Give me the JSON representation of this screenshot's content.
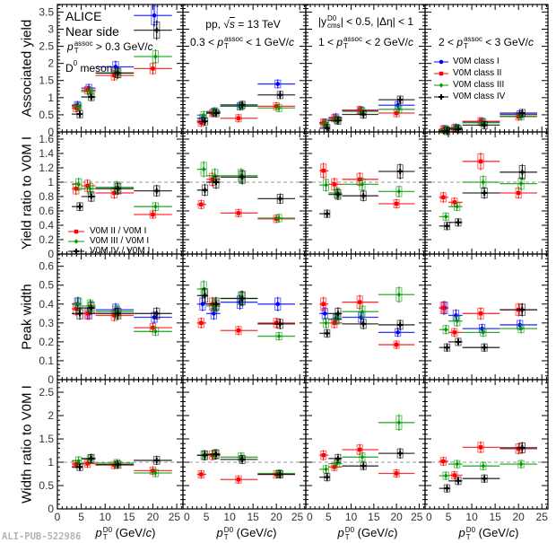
{
  "watermark": "ALI-PUB-522986",
  "annotations": {
    "alice": "ALICE",
    "near_side": "Near side",
    "pt_sym": "p",
    "pt_sub": "T",
    "assoc_sup": "assoc",
    "assoc_cut1": " > 0.3 GeV/",
    "c": "c",
    "d_meson_D": "D",
    "d_meson_sup": "0",
    "d_meson_rest": " meson",
    "pp": "pp, ",
    "sqrt": "√",
    "s": "s",
    "energy": " = 13 TeV",
    "bin2_pre": "0.3 < ",
    "bin2_post": " < 1 GeV/",
    "rap_pre": "|y",
    "rap_sup": "D0",
    "rap_sub": "cms",
    "rap_post": "| < 0.5, |Δη| < 1",
    "bin3_pre": "1 < ",
    "bin3_post": " < 2 GeV/",
    "bin4_pre": "2 < ",
    "bin4_post": " < 3 GeV/",
    "xlabel_sup": "D0",
    "xlabel_unit_pre": " (GeV/",
    "xlabel_unit_post": ")"
  },
  "legend_classes": [
    "V0M class I",
    "V0M class II",
    "V0M class III",
    "V0M class IV"
  ],
  "legend_ratios": [
    "V0M II / V0M I",
    "V0M III / V0M I",
    "V0M IV / V0M I"
  ],
  "colors": {
    "I": "#0000ff",
    "II": "#ff0000",
    "III": "#009900",
    "IV": "#000000"
  },
  "markers": {
    "I": "circle",
    "II": "square",
    "III": "diamond",
    "IV": "cross"
  },
  "chart_data": {
    "type": "scatter",
    "xlabel": "p_T^D0 (GeV/c)",
    "xlim": [
      0,
      26.3
    ],
    "xticks": [
      0,
      5,
      10,
      15,
      20,
      25
    ],
    "x_bins": [
      [
        3,
        5
      ],
      [
        5,
        8
      ],
      [
        8,
        16
      ],
      [
        16,
        24
      ]
    ],
    "x_centers": [
      4.2,
      6.6,
      12.2,
      20.3
    ],
    "columns": [
      "p_T^assoc > 0.3 GeV/c",
      "0.3 < p_T^assoc < 1 GeV/c",
      "1 < p_T^assoc < 2 GeV/c",
      "2 < p_T^assoc < 3 GeV/c"
    ],
    "rows": [
      {
        "ylabel": "Associated yield",
        "ylim": [
          0,
          3.72
        ],
        "yticks": [
          0,
          0.5,
          1,
          1.5,
          2,
          2.5,
          3,
          3.5
        ],
        "reference_line": null,
        "panels": [
          {
            "series": [
              {
                "name": "V0M class I",
                "key": "I",
                "values": [
                  0.78,
                  1.28,
                  1.9,
                  3.4
                ]
              },
              {
                "name": "V0M class II",
                "key": "II",
                "values": [
                  0.7,
                  1.22,
                  1.65,
                  1.85
                ]
              },
              {
                "name": "V0M class III",
                "key": "III",
                "values": [
                  0.75,
                  1.18,
                  1.72,
                  2.2
                ]
              },
              {
                "name": "V0M class IV",
                "key": "IV",
                "values": [
                  0.52,
                  1.02,
                  1.72,
                  2.97
                ]
              }
            ]
          },
          {
            "series": [
              {
                "name": "V0M class I",
                "key": "I",
                "values": [
                  0.4,
                  0.58,
                  0.75,
                  1.4
                ]
              },
              {
                "name": "V0M class II",
                "key": "II",
                "values": [
                  0.27,
                  0.55,
                  0.4,
                  0.75
                ]
              },
              {
                "name": "V0M class III",
                "key": "III",
                "values": [
                  0.49,
                  0.6,
                  0.75,
                  0.7
                ]
              },
              {
                "name": "V0M class IV",
                "key": "IV",
                "values": [
                  0.31,
                  0.55,
                  0.79,
                  1.08
                ]
              }
            ]
          },
          {
            "series": [
              {
                "name": "V0M class I",
                "key": "I",
                "values": [
                  0.27,
                  0.42,
                  0.62,
                  0.78
                ]
              },
              {
                "name": "V0M class II",
                "key": "II",
                "values": [
                  0.27,
                  0.4,
                  0.64,
                  0.55
                ]
              },
              {
                "name": "V0M class III",
                "key": "III",
                "values": [
                  0.23,
                  0.36,
                  0.6,
                  0.66
                ]
              },
              {
                "name": "V0M class IV",
                "key": "IV",
                "values": [
                  0.11,
                  0.33,
                  0.51,
                  0.94
                ]
              }
            ]
          },
          {
            "series": [
              {
                "name": "V0M class I",
                "key": "I",
                "values": [
                  0.08,
                  0.12,
                  0.29,
                  0.51
                ]
              },
              {
                "name": "V0M class II",
                "key": "II",
                "values": [
                  0.07,
                  0.1,
                  0.31,
                  0.45
                ]
              },
              {
                "name": "V0M class III",
                "key": "III",
                "values": [
                  0.07,
                  0.11,
                  0.27,
                  0.46
                ]
              },
              {
                "name": "V0M class IV",
                "key": "IV",
                "values": [
                  0.03,
                  0.08,
                  0.2,
                  0.55
                ]
              }
            ]
          }
        ]
      },
      {
        "ylabel": "Yield ratio to V0M I",
        "ylim": [
          0,
          1.7
        ],
        "yticks": [
          0,
          0.2,
          0.4,
          0.6,
          0.8,
          1,
          1.2,
          1.4,
          1.6
        ],
        "reference_line": 1,
        "panels": [
          {
            "series": [
              {
                "name": "V0M II / V0M I",
                "key": "II",
                "values": [
                  0.91,
                  0.95,
                  0.85,
                  0.55
                ]
              },
              {
                "name": "V0M III / V0M I",
                "key": "III",
                "values": [
                  0.97,
                  0.91,
                  0.93,
                  0.66
                ]
              },
              {
                "name": "V0M IV / V0M I",
                "key": "IV",
                "values": [
                  0.66,
                  0.8,
                  0.91,
                  0.88
                ]
              }
            ]
          },
          {
            "series": [
              {
                "name": "V0M II / V0M I",
                "key": "II",
                "values": [
                  0.69,
                  1.04,
                  0.57,
                  0.49
                ]
              },
              {
                "name": "V0M III / V0M I",
                "key": "III",
                "values": [
                  1.18,
                  1.09,
                  1.09,
                  0.5
                ]
              },
              {
                "name": "V0M IV / V0M I",
                "key": "IV",
                "values": [
                  0.89,
                  1.0,
                  1.07,
                  0.77
                ]
              }
            ]
          },
          {
            "series": [
              {
                "name": "V0M II / V0M I",
                "key": "II",
                "values": [
                  1.16,
                  0.97,
                  1.04,
                  0.7
                ]
              },
              {
                "name": "V0M III / V0M I",
                "key": "III",
                "values": [
                  0.96,
                  0.85,
                  0.97,
                  0.87
                ]
              },
              {
                "name": "V0M IV / V0M I",
                "key": "IV",
                "values": [
                  0.56,
                  0.83,
                  0.81,
                  1.15
                ]
              }
            ]
          },
          {
            "series": [
              {
                "name": "V0M II / V0M I",
                "key": "II",
                "values": [
                  0.79,
                  0.72,
                  1.29,
                  0.85
                ]
              },
              {
                "name": "V0M III / V0M I",
                "key": "III",
                "values": [
                  0.52,
                  0.66,
                  1.0,
                  0.98
                ]
              },
              {
                "name": "V0M IV / V0M I",
                "key": "IV",
                "values": [
                  0.39,
                  0.44,
                  0.85,
                  1.14
                ]
              }
            ]
          }
        ]
      },
      {
        "ylabel": "Peak width",
        "ylim": [
          0,
          0.665
        ],
        "yticks": [
          0,
          0.1,
          0.2,
          0.3,
          0.4,
          0.5,
          0.6
        ],
        "reference_line": null,
        "panels": [
          {
            "series": [
              {
                "name": "V0M class I",
                "key": "I",
                "values": [
                  0.4,
                  0.35,
                  0.37,
                  0.33
                ]
              },
              {
                "name": "V0M class II",
                "key": "II",
                "values": [
                  0.375,
                  0.35,
                  0.34,
                  0.275
                ]
              },
              {
                "name": "V0M class III",
                "key": "III",
                "values": [
                  0.4,
                  0.39,
                  0.36,
                  0.255
                ]
              },
              {
                "name": "V0M class IV",
                "key": "IV",
                "values": [
                  0.35,
                  0.38,
                  0.35,
                  0.35
                ]
              }
            ]
          },
          {
            "series": [
              {
                "name": "V0M class I",
                "key": "I",
                "values": [
                  0.4,
                  0.35,
                  0.41,
                  0.4
                ]
              },
              {
                "name": "V0M class II",
                "key": "II",
                "values": [
                  0.3,
                  0.4,
                  0.26,
                  0.3
                ]
              },
              {
                "name": "V0M class III",
                "key": "III",
                "values": [
                  0.48,
                  0.39,
                  0.43,
                  0.23
                ]
              },
              {
                "name": "V0M class IV",
                "key": "IV",
                "values": [
                  0.445,
                  0.4,
                  0.43,
                  0.295
                ]
              }
            ]
          },
          {
            "series": [
              {
                "name": "V0M class I",
                "key": "I",
                "values": [
                  0.35,
                  0.32,
                  0.33,
                  0.25
                ]
              },
              {
                "name": "V0M class II",
                "key": "II",
                "values": [
                  0.4,
                  0.3,
                  0.41,
                  0.185
                ]
              },
              {
                "name": "V0M class III",
                "key": "III",
                "values": [
                  0.3,
                  0.32,
                  0.36,
                  0.45
                ]
              },
              {
                "name": "V0M class IV",
                "key": "IV",
                "values": [
                  0.245,
                  0.35,
                  0.295,
                  0.29
                ]
              }
            ]
          },
          {
            "series": [
              {
                "name": "V0M class I",
                "key": "I",
                "values": [
                  0.38,
                  0.34,
                  0.27,
                  0.29
                ]
              },
              {
                "name": "V0M class II",
                "key": "II",
                "values": [
                  0.38,
                  0.25,
                  0.35,
                  0.37
                ]
              },
              {
                "name": "V0M class III",
                "key": "III",
                "values": [
                  0.265,
                  0.31,
                  0.25,
                  0.27
                ]
              },
              {
                "name": "V0M class IV",
                "key": "IV",
                "values": [
                  0.17,
                  0.2,
                  0.17,
                  0.37
                ]
              }
            ]
          }
        ]
      },
      {
        "ylabel": "Width ratio to V0M I",
        "ylim": [
          0,
          2.77
        ],
        "yticks": [
          0,
          0.5,
          1,
          1.5,
          2,
          2.5
        ],
        "reference_line": 1,
        "panels": [
          {
            "series": [
              {
                "name": "V0M II / V0M I",
                "key": "II",
                "values": [
                  0.96,
                  0.97,
                  0.94,
                  0.82
                ]
              },
              {
                "name": "V0M III / V0M I",
                "key": "III",
                "values": [
                  1.03,
                  1.07,
                  0.98,
                  0.77
                ]
              },
              {
                "name": "V0M IV / V0M I",
                "key": "IV",
                "values": [
                  0.9,
                  1.08,
                  0.95,
                  1.04
                ]
              }
            ]
          },
          {
            "series": [
              {
                "name": "V0M II / V0M I",
                "key": "II",
                "values": [
                  0.74,
                  1.15,
                  0.63,
                  0.74
                ]
              },
              {
                "name": "V0M III / V0M I",
                "key": "III",
                "values": [
                  1.15,
                  1.17,
                  1.11,
                  0.76
                ]
              },
              {
                "name": "V0M IV / V0M I",
                "key": "IV",
                "values": [
                  1.15,
                  1.17,
                  1.06,
                  0.74
                ]
              }
            ]
          },
          {
            "series": [
              {
                "name": "V0M II / V0M I",
                "key": "II",
                "values": [
                  1.15,
                  0.9,
                  1.27,
                  0.76
                ]
              },
              {
                "name": "V0M III / V0M I",
                "key": "III",
                "values": [
                  0.85,
                  0.97,
                  1.11,
                  1.85
                ]
              },
              {
                "name": "V0M IV / V0M I",
                "key": "IV",
                "values": [
                  0.68,
                  1.08,
                  0.92,
                  1.19
                ]
              }
            ]
          },
          {
            "series": [
              {
                "name": "V0M II / V0M I",
                "key": "II",
                "values": [
                  1.02,
                  0.72,
                  1.32,
                  1.29
                ]
              },
              {
                "name": "V0M III / V0M I",
                "key": "III",
                "values": [
                  0.71,
                  0.96,
                  0.92,
                  0.96
                ]
              },
              {
                "name": "V0M IV / V0M I",
                "key": "IV",
                "values": [
                  0.44,
                  0.6,
                  0.65,
                  1.31
                ]
              }
            ]
          }
        ]
      }
    ]
  }
}
